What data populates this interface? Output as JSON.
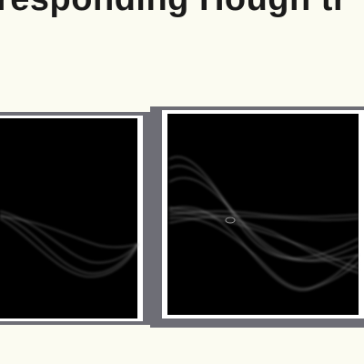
{
  "heading": "responding Hough tr"
}
